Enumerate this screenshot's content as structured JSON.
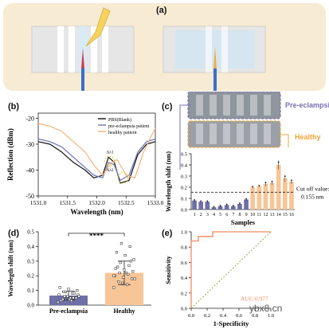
{
  "panel_labels": {
    "a": "(a)",
    "b": "(b)",
    "c": "(c)",
    "d": "(d)",
    "e": "(e)"
  },
  "panel_c_annotations": {
    "pre_eclampsia": "Pre-eclampsia",
    "healthy": "Healthy",
    "cutoff_line1": "Cut off value:",
    "cutoff_line2": "0.155 nm"
  },
  "panel_b_annotations": {
    "delta1": "Δλ1",
    "delta2": "Δλ2"
  },
  "watermark": "ybx8.cn",
  "colors": {
    "pbs": "#111111",
    "pre": "#6e73b8",
    "healthy": "#f5b27a",
    "bar_pre": "#6d6fa6",
    "bar_healthy": "#f8c596",
    "roc": "#ef8a5f",
    "diag": "#9a9a3a"
  },
  "chart_data": [
    {
      "type": "line",
      "title": "",
      "xlabel": "Wavelength (nm)",
      "ylabel": "Reflection (dBm)",
      "xlim": [
        1531.0,
        1533.0
      ],
      "ylim": [
        -50,
        -18
      ],
      "xticks": [
        "1531.0",
        "1531.5",
        "1532.0",
        "1532.5",
        "1533.0"
      ],
      "yticks": [
        "-20",
        "-30",
        "-40",
        "-50"
      ],
      "legend_position": "top-right",
      "series": [
        {
          "name": "PBS(Blank)",
          "x": [
            1531.0,
            1531.2,
            1531.4,
            1531.6,
            1531.8,
            1531.95,
            1532.1,
            1532.2,
            1532.3,
            1532.4,
            1532.55,
            1532.7,
            1532.85,
            1533.0
          ],
          "y": [
            -29,
            -30,
            -33,
            -37,
            -40,
            -43,
            -42,
            -35,
            -37,
            -45,
            -44,
            -34,
            -30,
            -29
          ]
        },
        {
          "name": "pre-eclampsia patient",
          "x": [
            1531.0,
            1531.2,
            1531.4,
            1531.6,
            1531.8,
            1531.95,
            1532.1,
            1532.2,
            1532.3,
            1532.4,
            1532.55,
            1532.7,
            1532.85,
            1533.0
          ],
          "y": [
            -28,
            -29,
            -31,
            -35,
            -39,
            -42,
            -43,
            -37,
            -38,
            -44,
            -42,
            -33,
            -29,
            -28
          ]
        },
        {
          "name": "healthy patient",
          "x": [
            1531.0,
            1531.2,
            1531.4,
            1531.6,
            1531.8,
            1531.95,
            1532.1,
            1532.25,
            1532.35,
            1532.5,
            1532.65,
            1532.8,
            1532.95,
            1533.0
          ],
          "y": [
            -22,
            -23,
            -25,
            -29,
            -33,
            -38,
            -42,
            -37,
            -36,
            -42,
            -43,
            -33,
            -26,
            -24
          ]
        }
      ]
    },
    {
      "type": "bar",
      "title": "",
      "xlabel": "Samples",
      "ylabel": "Wavelength shift (nm)",
      "ylim": [
        0.0,
        0.5
      ],
      "yticks": [
        "0.0",
        "0.1",
        "0.2",
        "0.3",
        "0.4",
        "0.5"
      ],
      "categories": [
        "1",
        "2",
        "3",
        "4",
        "5",
        "6",
        "7",
        "8",
        "9",
        "10",
        "11",
        "12",
        "13",
        "14",
        "15",
        "16"
      ],
      "values": [
        0.08,
        0.07,
        0.07,
        0.02,
        0.03,
        0.04,
        0.03,
        0.05,
        0.09,
        0.2,
        0.21,
        0.23,
        0.24,
        0.4,
        0.28,
        0.25
      ],
      "errors": [
        0.01,
        0.01,
        0.01,
        0.01,
        0.01,
        0.01,
        0.01,
        0.01,
        0.01,
        0.01,
        0.01,
        0.02,
        0.02,
        0.04,
        0.03,
        0.02
      ],
      "groups": [
        "pre",
        "pre",
        "pre",
        "pre",
        "pre",
        "pre",
        "pre",
        "pre",
        "pre",
        "healthy",
        "healthy",
        "healthy",
        "healthy",
        "healthy",
        "healthy",
        "healthy"
      ],
      "cutoff": 0.155
    },
    {
      "type": "bar",
      "title": "",
      "xlabel": "",
      "ylabel": "Wavelegth shift (nm)",
      "ylim": [
        0.0,
        0.5
      ],
      "yticks": [
        "0.0",
        "0.1",
        "0.2",
        "0.3",
        "0.4",
        "0.5"
      ],
      "categories": [
        "Pre-eclampsia",
        "Healthy"
      ],
      "values": [
        0.065,
        0.22
      ],
      "errors": [
        0.03,
        0.08
      ],
      "significance": "****",
      "points_pre": [
        0.02,
        0.03,
        0.04,
        0.05,
        0.06,
        0.07,
        0.08,
        0.09,
        0.1,
        0.11,
        0.12,
        0.05,
        0.06,
        0.07,
        0.04,
        0.03,
        0.08,
        0.09,
        0.06,
        0.05
      ],
      "points_healthy": [
        0.12,
        0.14,
        0.16,
        0.18,
        0.19,
        0.2,
        0.21,
        0.22,
        0.23,
        0.24,
        0.25,
        0.27,
        0.29,
        0.31,
        0.34,
        0.36,
        0.4,
        0.42,
        0.18,
        0.22,
        0.26,
        0.3,
        0.15,
        0.2
      ]
    },
    {
      "type": "line",
      "title": "",
      "xlabel": "1-Specificity",
      "ylabel": "Sensitivity",
      "xlim": [
        0.0,
        1.0
      ],
      "ylim": [
        0.0,
        1.0
      ],
      "xticks": [
        "0.0",
        "0.2",
        "0.4",
        "0.6",
        "0.8",
        "1.0"
      ],
      "yticks": [
        "0.0",
        "0.2",
        "0.4",
        "0.6",
        "0.8",
        "1.0"
      ],
      "annotation": "AUC:0.977",
      "series": [
        {
          "name": "",
          "x": [
            0.0,
            0.0,
            0.09,
            0.09,
            0.27,
            0.27,
            1.0
          ],
          "y": [
            0.0,
            0.88,
            0.88,
            0.94,
            0.94,
            1.0,
            1.0
          ]
        },
        {
          "name": "",
          "x": [
            0.0,
            1.0
          ],
          "y": [
            0.0,
            1.0
          ]
        }
      ]
    }
  ]
}
